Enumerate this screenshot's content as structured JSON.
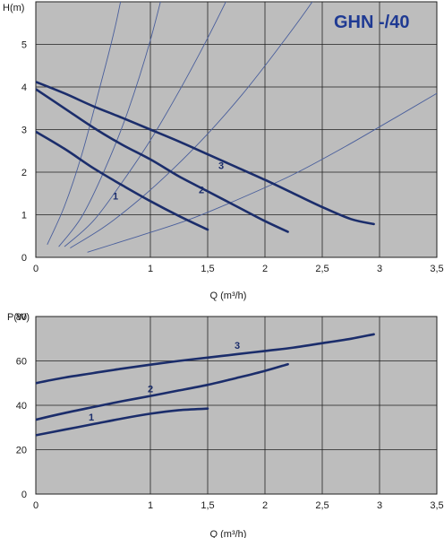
{
  "model_title": "GHN -/40",
  "colors": {
    "plot_background": "#bdbdbd",
    "grid": "#222222",
    "curve": "#1b2d6b",
    "system_curve": "#4a5f9c",
    "title": "#1f3a93"
  },
  "chart_data": [
    {
      "type": "line",
      "id": "head",
      "ylabel": "H(m)",
      "xlabel": "Q (m³/h)",
      "xlim": [
        0,
        3.5
      ],
      "ylim": [
        0,
        6
      ],
      "xticks": [
        0,
        1,
        1.5,
        2,
        2.5,
        3,
        3.5
      ],
      "xtick_labels": [
        "0",
        "1",
        "1,5",
        "2",
        "2,5",
        "3",
        "3,5"
      ],
      "yticks": [
        0,
        1,
        2,
        3,
        4,
        5
      ],
      "ytick_labels": [
        "0",
        "1",
        "2",
        "3",
        "4",
        "5"
      ],
      "grid": true,
      "series": [
        {
          "name": "1",
          "x": [
            0,
            0.25,
            0.5,
            0.75,
            1.0,
            1.25,
            1.5
          ],
          "y": [
            2.95,
            2.55,
            2.1,
            1.7,
            1.32,
            0.97,
            0.65
          ]
        },
        {
          "name": "2",
          "x": [
            0,
            0.25,
            0.5,
            0.75,
            1.0,
            1.25,
            1.5,
            1.75,
            2.0,
            2.2
          ],
          "y": [
            3.95,
            3.5,
            3.05,
            2.65,
            2.3,
            1.9,
            1.55,
            1.2,
            0.85,
            0.6
          ]
        },
        {
          "name": "3",
          "x": [
            0,
            0.25,
            0.5,
            0.75,
            1.0,
            1.25,
            1.5,
            1.75,
            2.0,
            2.25,
            2.5,
            2.75,
            2.95
          ],
          "y": [
            4.12,
            3.85,
            3.55,
            3.28,
            3.0,
            2.72,
            2.42,
            2.12,
            1.82,
            1.5,
            1.18,
            0.9,
            0.78
          ]
        }
      ],
      "system_curves": [
        {
          "x": [
            0.1,
            0.25,
            0.4,
            0.55,
            0.7,
            0.85
          ],
          "y": [
            0.3,
            1.2,
            2.4,
            3.9,
            5.5,
            7.5
          ]
        },
        {
          "x": [
            0.2,
            0.4,
            0.6,
            0.8,
            1.0,
            1.2
          ],
          "y": [
            0.25,
            0.95,
            2.05,
            3.4,
            5.1,
            7.2
          ]
        },
        {
          "x": [
            0.25,
            0.5,
            0.75,
            1.0,
            1.25,
            1.5,
            1.75,
            1.95
          ],
          "y": [
            0.25,
            0.85,
            1.75,
            2.75,
            3.9,
            5.15,
            6.5,
            7.6
          ]
        },
        {
          "x": [
            0.3,
            0.6,
            0.9,
            1.2,
            1.5,
            1.8,
            2.1,
            2.4,
            2.7
          ],
          "y": [
            0.22,
            0.72,
            1.35,
            2.08,
            2.9,
            3.82,
            4.85,
            5.95,
            7.2
          ]
        },
        {
          "x": [
            0.45,
            0.9,
            1.35,
            1.8,
            2.25,
            2.7,
            3.15,
            3.5
          ],
          "y": [
            0.12,
            0.5,
            0.9,
            1.4,
            1.95,
            2.6,
            3.3,
            3.85
          ]
        }
      ]
    },
    {
      "type": "line",
      "id": "power",
      "ylabel": "P(W)",
      "xlabel": "Q (m³/h)",
      "xlim": [
        0,
        3.5
      ],
      "ylim": [
        0,
        80
      ],
      "xticks": [
        0,
        1,
        1.5,
        2,
        2.5,
        3,
        3.5
      ],
      "xtick_labels": [
        "0",
        "1",
        "1,5",
        "2",
        "2,5",
        "3",
        "3,5"
      ],
      "yticks": [
        0,
        20,
        40,
        60,
        80
      ],
      "ytick_labels": [
        "0",
        "20",
        "40",
        "60",
        "80"
      ],
      "grid": true,
      "series": [
        {
          "name": "1",
          "x": [
            0,
            0.25,
            0.5,
            0.75,
            1.0,
            1.25,
            1.5
          ],
          "y": [
            26.5,
            29,
            31.5,
            34,
            36.2,
            37.8,
            38.5
          ]
        },
        {
          "name": "2",
          "x": [
            0,
            0.25,
            0.5,
            0.75,
            1.0,
            1.25,
            1.5,
            1.75,
            2.0,
            2.2
          ],
          "y": [
            33.5,
            36.5,
            39.2,
            41.8,
            44.2,
            46.7,
            49.2,
            52.3,
            55.5,
            58.5
          ]
        },
        {
          "name": "3",
          "x": [
            0,
            0.25,
            0.5,
            0.75,
            1.0,
            1.25,
            1.5,
            1.75,
            2.0,
            2.25,
            2.5,
            2.75,
            2.95
          ],
          "y": [
            50,
            52.5,
            54.5,
            56.5,
            58.3,
            60,
            61.5,
            63,
            64.5,
            66,
            68,
            70,
            72
          ]
        }
      ]
    }
  ]
}
